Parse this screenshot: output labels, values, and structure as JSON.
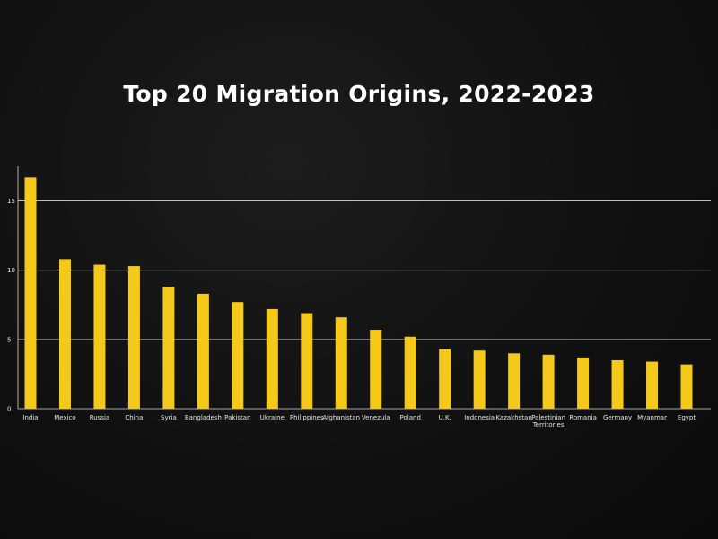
{
  "chart_data": {
    "type": "bar",
    "title": "Top 20 Migration Origins, 2022-2023",
    "xlabel": "",
    "ylabel": "",
    "ylim": [
      0,
      17.5
    ],
    "yticks": [
      0,
      5,
      10,
      15
    ],
    "grid": true,
    "bar_color": "#f5c91a",
    "categories": [
      "India",
      "Mexico",
      "Russia",
      "China",
      "Syria",
      "Bangladesh",
      "Pakistan",
      "Ukraine",
      "Philippines",
      "Afghanistan",
      "Venezula",
      "Poland",
      "U.K.",
      "Indonesia",
      "Kazakhstan",
      "Palestinian Territories",
      "Romania",
      "Germany",
      "Myanmar",
      "Egypt"
    ],
    "values": [
      16.7,
      10.8,
      10.4,
      10.3,
      8.8,
      8.3,
      7.7,
      7.2,
      6.9,
      6.6,
      5.7,
      5.2,
      4.3,
      4.2,
      4.0,
      3.9,
      3.7,
      3.5,
      3.4,
      3.2
    ]
  }
}
